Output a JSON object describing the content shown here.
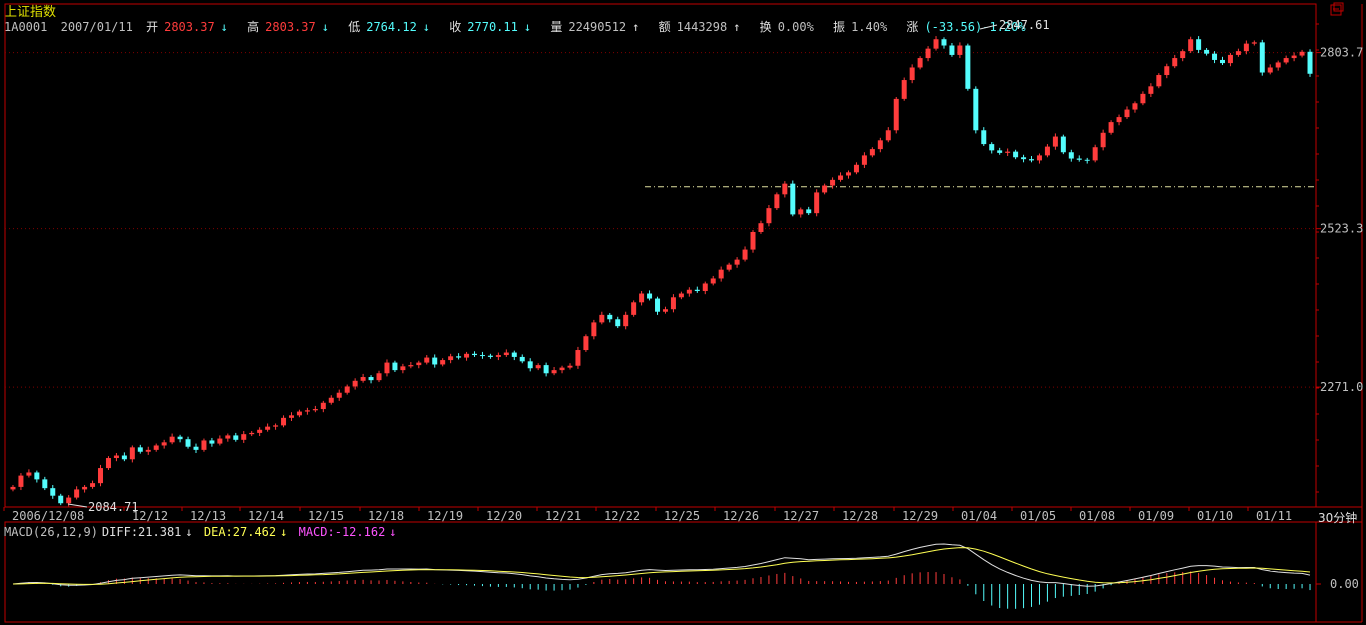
{
  "header": {
    "title": "上证指数",
    "code": "1A0001",
    "date": "2007/01/11",
    "open_label": "开",
    "open": "2803.37",
    "high_label": "高",
    "high": "2803.37",
    "low_label": "低",
    "low": "2764.12",
    "close_label": "收",
    "close": "2770.11",
    "volume_label": "量",
    "volume": "22490512",
    "amount_label": "额",
    "amount": "1443298",
    "turnover_label": "换",
    "turnover": "0.00%",
    "amplitude_label": "振",
    "amplitude": "1.40%",
    "change_label": "涨",
    "change": "(-33.56)-1.20%",
    "arrow_down": "↓",
    "arrow_up": "↑"
  },
  "timeframe": "30分钟",
  "macd_header": {
    "label": "MACD(26,12,9)",
    "diff": "DIFF:21.381",
    "dea": "DEA:27.462",
    "macd": "MACD:-12.162",
    "diff_arrow": "↓",
    "dea_arrow": "↓",
    "macd_arrow": "↓"
  },
  "colors": {
    "up": "#ff3c3c",
    "down": "#54fcfc",
    "grid": "#800000",
    "axis": "#c00000",
    "diff_line": "#e0e0e0",
    "dea_line": "#ffff54",
    "dashed_level": "#e0e0a0"
  },
  "chart_data": {
    "type": "candlestick",
    "instrument": "上证指数",
    "y_ticks": [
      2271.0,
      2523.3,
      2803.7
    ],
    "ylim": [
      2080,
      2862
    ],
    "x_labels": [
      "2006/12/08",
      "12/12",
      "12/13",
      "12/14",
      "12/15",
      "12/18",
      "12/19",
      "12/20",
      "12/21",
      "12/22",
      "12/25",
      "12/26",
      "12/27",
      "12/28",
      "12/29",
      "01/04",
      "01/05",
      "01/08",
      "01/09",
      "01/10",
      "01/11"
    ],
    "annotations": [
      {
        "text": "2084.71",
        "value": 2084.71
      },
      {
        "text": "2847.61",
        "value": 2847.61
      }
    ],
    "reference_level": 2590,
    "macd_axis_label": "0.00",
    "closes": [
      2112,
      2130,
      2135,
      2124,
      2110,
      2098,
      2086,
      2095,
      2108,
      2112,
      2118,
      2142,
      2158,
      2162,
      2156,
      2175,
      2168,
      2171,
      2178,
      2183,
      2192,
      2188,
      2176,
      2171,
      2186,
      2181,
      2189,
      2194,
      2187,
      2196,
      2198,
      2203,
      2208,
      2210,
      2222,
      2226,
      2232,
      2234,
      2236,
      2246,
      2254,
      2262,
      2272,
      2281,
      2287,
      2282,
      2293,
      2310,
      2298,
      2304,
      2306,
      2310,
      2318,
      2307,
      2314,
      2320,
      2318,
      2324,
      2322,
      2321,
      2319,
      2322,
      2326,
      2319,
      2312,
      2301,
      2306,
      2293,
      2298,
      2302,
      2305,
      2330,
      2352,
      2374,
      2386,
      2379,
      2368,
      2386,
      2406,
      2420,
      2412,
      2391,
      2395,
      2414,
      2420,
      2426,
      2424,
      2436,
      2444,
      2458,
      2466,
      2474,
      2490,
      2518,
      2532,
      2556,
      2578,
      2595,
      2546,
      2554,
      2548,
      2581,
      2592,
      2601,
      2608,
      2613,
      2625,
      2640,
      2650,
      2664,
      2680,
      2730,
      2760,
      2780,
      2795,
      2810,
      2825,
      2815,
      2800,
      2815,
      2746,
      2680,
      2658,
      2648,
      2644,
      2646,
      2637,
      2634,
      2632,
      2640,
      2654,
      2670,
      2645,
      2635,
      2633,
      2632,
      2653,
      2676,
      2693,
      2701,
      2713,
      2723,
      2738,
      2750,
      2768,
      2782,
      2795,
      2806,
      2825,
      2808,
      2802,
      2792,
      2787,
      2800,
      2806,
      2818,
      2820,
      2772,
      2780,
      2788,
      2795,
      2799,
      2805,
      2770
    ]
  }
}
